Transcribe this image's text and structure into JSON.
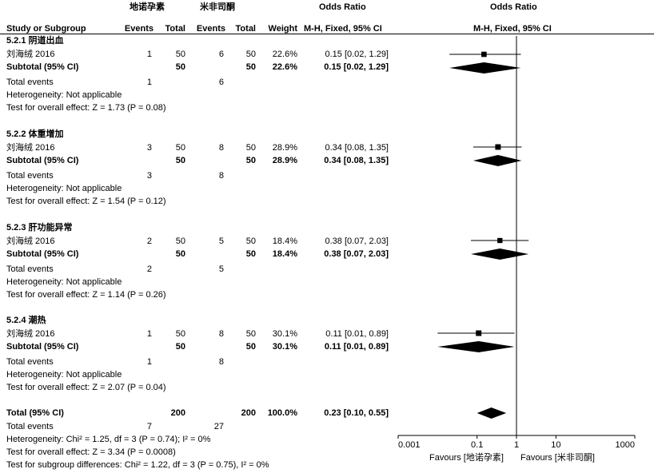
{
  "header": {
    "group1": "地诺孕素",
    "group2": "米非司酮",
    "or_title_left": "Odds Ratio",
    "or_title_right": "Odds Ratio",
    "col_study": "Study or Subgroup",
    "col_events1": "Events",
    "col_total1": "Total",
    "col_events2": "Events",
    "col_total2": "Total",
    "col_weight": "Weight",
    "col_method_left": "M-H, Fixed, 95% CI",
    "col_method_right": "M-H, Fixed, 95% CI"
  },
  "subgroups": [
    {
      "title": "5.2.1 阴道出血",
      "study": "刘海绒 2016",
      "e1": "1",
      "n1": "50",
      "e2": "6",
      "n2": "50",
      "weight": "22.6%",
      "ci": "0.15 [0.02, 1.29]",
      "subtotal_label": "Subtotal (95% CI)",
      "sub_n1": "50",
      "sub_n2": "50",
      "sub_weight": "22.6%",
      "sub_ci": "0.15 [0.02, 1.29]",
      "total_events_label": "Total events",
      "te1": "1",
      "te2": "6",
      "heterogeneity": "Heterogeneity: Not applicable",
      "overall": "Test for overall effect: Z = 1.73 (P = 0.08)"
    },
    {
      "title": "5.2.2 体重增加",
      "study": "刘海绒 2016",
      "e1": "3",
      "n1": "50",
      "e2": "8",
      "n2": "50",
      "weight": "28.9%",
      "ci": "0.34 [0.08, 1.35]",
      "subtotal_label": "Subtotal (95% CI)",
      "sub_n1": "50",
      "sub_n2": "50",
      "sub_weight": "28.9%",
      "sub_ci": "0.34 [0.08, 1.35]",
      "total_events_label": "Total events",
      "te1": "3",
      "te2": "8",
      "heterogeneity": "Heterogeneity: Not applicable",
      "overall": "Test for overall effect: Z = 1.54 (P = 0.12)"
    },
    {
      "title": "5.2.3 肝功能异常",
      "study": "刘海绒 2016",
      "e1": "2",
      "n1": "50",
      "e2": "5",
      "n2": "50",
      "weight": "18.4%",
      "ci": "0.38 [0.07, 2.03]",
      "subtotal_label": "Subtotal (95% CI)",
      "sub_n1": "50",
      "sub_n2": "50",
      "sub_weight": "18.4%",
      "sub_ci": "0.38 [0.07, 2.03]",
      "total_events_label": "Total events",
      "te1": "2",
      "te2": "5",
      "heterogeneity": "Heterogeneity: Not applicable",
      "overall": "Test for overall effect: Z = 1.14 (P = 0.26)"
    },
    {
      "title": "5.2.4 潮热",
      "study": "刘海绒 2016",
      "e1": "1",
      "n1": "50",
      "e2": "8",
      "n2": "50",
      "weight": "30.1%",
      "ci": "0.11 [0.01, 0.89]",
      "subtotal_label": "Subtotal (95% CI)",
      "sub_n1": "50",
      "sub_n2": "50",
      "sub_weight": "30.1%",
      "sub_ci": "0.11 [0.01, 0.89]",
      "total_events_label": "Total events",
      "te1": "1",
      "te2": "8",
      "heterogeneity": "Heterogeneity: Not applicable",
      "overall": "Test for overall effect: Z = 2.07 (P = 0.04)"
    }
  ],
  "total": {
    "label": "Total (95% CI)",
    "n1": "200",
    "n2": "200",
    "weight": "100.0%",
    "ci": "0.23 [0.10, 0.55]",
    "events_label": "Total events",
    "te1": "7",
    "te2": "27",
    "heterogeneity": "Heterogeneity: Chi² = 1.25, df = 3 (P = 0.74); I² = 0%",
    "overall": "Test for overall effect: Z = 3.34 (P = 0.0008)",
    "subgroup": "Test for subgroup differences: Chi² = 1.22, df = 3 (P = 0.75), I² = 0%"
  },
  "axis": {
    "favours_left": "Favours [地诺孕素]",
    "favours_right": "Favours [米非司酮]"
  },
  "chart_data": {
    "type": "scatter",
    "scale": "log",
    "xlim": [
      0.001,
      1000
    ],
    "ticks": [
      0.001,
      0.1,
      1,
      10,
      1000
    ],
    "tick_labels": [
      "0.001",
      "0.1",
      "1",
      "10",
      "1000"
    ],
    "null_line": 1,
    "studies": [
      {
        "or": 0.15,
        "lo": 0.02,
        "hi": 1.29,
        "weight": 22.6
      },
      {
        "or": 0.34,
        "lo": 0.08,
        "hi": 1.35,
        "weight": 28.9
      },
      {
        "or": 0.38,
        "lo": 0.07,
        "hi": 2.03,
        "weight": 18.4
      },
      {
        "or": 0.11,
        "lo": 0.01,
        "hi": 0.89,
        "weight": 30.1
      }
    ],
    "subtotals": [
      {
        "or": 0.15,
        "lo": 0.02,
        "hi": 1.29
      },
      {
        "or": 0.34,
        "lo": 0.08,
        "hi": 1.35
      },
      {
        "or": 0.38,
        "lo": 0.07,
        "hi": 2.03
      },
      {
        "or": 0.11,
        "lo": 0.01,
        "hi": 0.89
      }
    ],
    "total": {
      "or": 0.23,
      "lo": 0.1,
      "hi": 0.55
    }
  }
}
